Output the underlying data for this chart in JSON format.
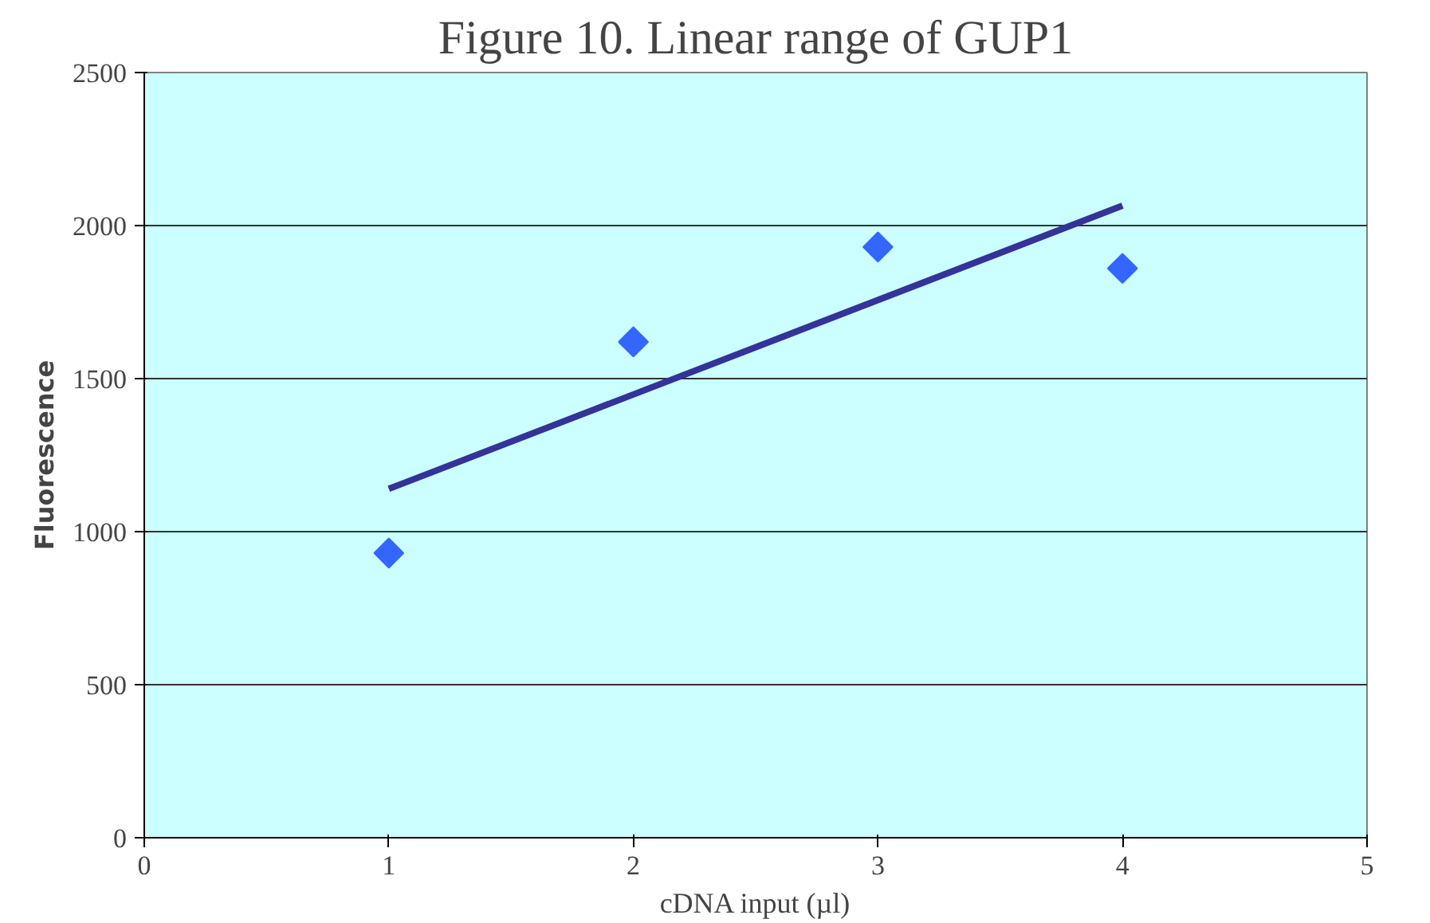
{
  "chart_data": {
    "type": "scatter",
    "title": "Figure 10. Linear range of GUP1",
    "xlabel": "cDNA input (µl)",
    "ylabel": "Fluorescence",
    "x": [
      1,
      2,
      3,
      4
    ],
    "xlim": [
      0,
      5
    ],
    "xticks": [
      0,
      1,
      2,
      3,
      4,
      5
    ],
    "ylim": [
      0,
      2500
    ],
    "yticks": [
      0,
      500,
      1000,
      1500,
      2000,
      2500
    ],
    "grid": "y",
    "series": [
      {
        "color": "#3366ff",
        "values": [
          930,
          1620,
          1930,
          1860
        ],
        "marker": "diamond"
      },
      {
        "type": "line",
        "color": "#333399",
        "x": [
          1,
          4
        ],
        "values": [
          1140,
          2065
        ],
        "marker": "none",
        "line_style": "solid"
      }
    ]
  }
}
